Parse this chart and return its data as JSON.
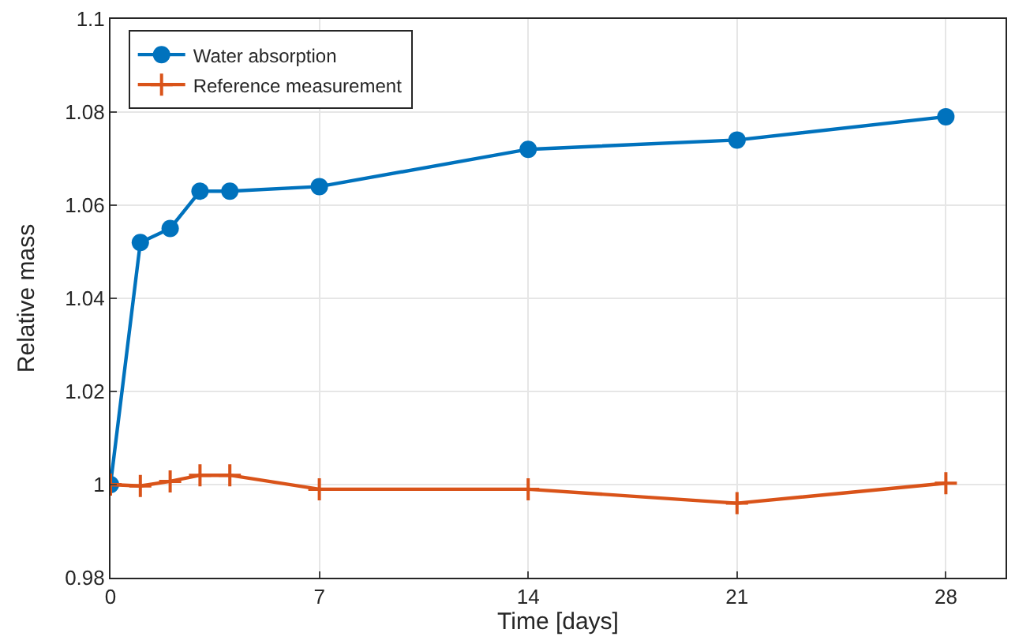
{
  "chart_data": {
    "type": "line",
    "xlabel": "Time [days]",
    "ylabel": "Relative mass",
    "x": [
      0,
      1,
      2,
      3,
      4,
      7,
      14,
      21,
      28
    ],
    "series": [
      {
        "name": "Water absorption",
        "color": "#0072bd",
        "marker": "circle",
        "values": [
          1.0,
          1.052,
          1.055,
          1.063,
          1.063,
          1.064,
          1.072,
          1.074,
          1.079
        ]
      },
      {
        "name": "Reference measurement",
        "color": "#d95319",
        "marker": "cross",
        "values": [
          1.0,
          0.9997,
          1.0007,
          1.002,
          1.002,
          0.999,
          0.999,
          0.996,
          1.0003
        ]
      }
    ],
    "xlim": [
      0,
      30
    ],
    "xticks": [
      0,
      7,
      14,
      21,
      28
    ],
    "ylim": [
      0.98,
      1.1
    ],
    "yticks": [
      0.98,
      1,
      1.02,
      1.04,
      1.06,
      1.08,
      1.1
    ],
    "grid": true,
    "legend": "top left",
    "line_style": "solid"
  }
}
